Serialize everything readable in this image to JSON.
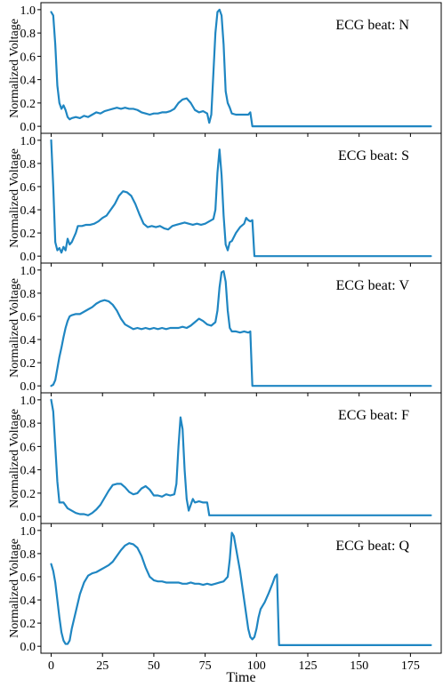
{
  "chart_data": {
    "type": "line",
    "xlabel": "Time",
    "ylabel": "Normalized Voltage",
    "xlim": [
      -5,
      190
    ],
    "ylim": [
      -0.06,
      1.06
    ],
    "x_ticks": [
      0,
      25,
      50,
      75,
      100,
      125,
      150,
      175
    ],
    "y_ticks": [
      0.0,
      0.2,
      0.4,
      0.6,
      0.8,
      1.0
    ],
    "line_color": "#1f86c2",
    "panels": [
      {
        "label": "ECG beat: N",
        "points": [
          [
            0,
            0.98
          ],
          [
            1,
            0.95
          ],
          [
            2,
            0.7
          ],
          [
            3,
            0.35
          ],
          [
            4,
            0.2
          ],
          [
            5,
            0.15
          ],
          [
            6,
            0.18
          ],
          [
            7,
            0.14
          ],
          [
            8,
            0.08
          ],
          [
            9,
            0.06
          ],
          [
            10,
            0.07
          ],
          [
            12,
            0.08
          ],
          [
            14,
            0.07
          ],
          [
            16,
            0.09
          ],
          [
            18,
            0.08
          ],
          [
            20,
            0.1
          ],
          [
            22,
            0.12
          ],
          [
            24,
            0.11
          ],
          [
            26,
            0.13
          ],
          [
            28,
            0.14
          ],
          [
            30,
            0.15
          ],
          [
            32,
            0.16
          ],
          [
            34,
            0.15
          ],
          [
            36,
            0.16
          ],
          [
            38,
            0.15
          ],
          [
            40,
            0.15
          ],
          [
            42,
            0.14
          ],
          [
            44,
            0.12
          ],
          [
            46,
            0.11
          ],
          [
            48,
            0.1
          ],
          [
            50,
            0.11
          ],
          [
            52,
            0.11
          ],
          [
            54,
            0.12
          ],
          [
            56,
            0.12
          ],
          [
            58,
            0.13
          ],
          [
            60,
            0.15
          ],
          [
            62,
            0.2
          ],
          [
            64,
            0.23
          ],
          [
            66,
            0.24
          ],
          [
            68,
            0.2
          ],
          [
            70,
            0.14
          ],
          [
            72,
            0.12
          ],
          [
            74,
            0.13
          ],
          [
            76,
            0.11
          ],
          [
            77,
            0.03
          ],
          [
            78,
            0.1
          ],
          [
            79,
            0.45
          ],
          [
            80,
            0.8
          ],
          [
            81,
            0.98
          ],
          [
            82,
            1.0
          ],
          [
            83,
            0.95
          ],
          [
            84,
            0.7
          ],
          [
            85,
            0.3
          ],
          [
            86,
            0.2
          ],
          [
            87,
            0.16
          ],
          [
            88,
            0.11
          ],
          [
            90,
            0.1
          ],
          [
            92,
            0.1
          ],
          [
            94,
            0.1
          ],
          [
            96,
            0.1
          ],
          [
            97,
            0.12
          ],
          [
            98,
            0.0
          ],
          [
            120,
            0.0
          ],
          [
            140,
            0.0
          ],
          [
            160,
            0.0
          ],
          [
            185,
            0.0
          ]
        ]
      },
      {
        "label": "ECG beat: S",
        "points": [
          [
            0,
            1.0
          ],
          [
            1,
            0.6
          ],
          [
            2,
            0.12
          ],
          [
            3,
            0.05
          ],
          [
            4,
            0.07
          ],
          [
            5,
            0.03
          ],
          [
            6,
            0.08
          ],
          [
            7,
            0.05
          ],
          [
            8,
            0.15
          ],
          [
            9,
            0.1
          ],
          [
            10,
            0.12
          ],
          [
            12,
            0.2
          ],
          [
            13,
            0.26
          ],
          [
            15,
            0.26
          ],
          [
            17,
            0.27
          ],
          [
            19,
            0.27
          ],
          [
            21,
            0.28
          ],
          [
            23,
            0.3
          ],
          [
            25,
            0.33
          ],
          [
            27,
            0.35
          ],
          [
            29,
            0.4
          ],
          [
            31,
            0.45
          ],
          [
            33,
            0.52
          ],
          [
            35,
            0.56
          ],
          [
            37,
            0.55
          ],
          [
            39,
            0.52
          ],
          [
            41,
            0.45
          ],
          [
            43,
            0.36
          ],
          [
            45,
            0.28
          ],
          [
            47,
            0.25
          ],
          [
            49,
            0.26
          ],
          [
            51,
            0.25
          ],
          [
            53,
            0.26
          ],
          [
            55,
            0.24
          ],
          [
            57,
            0.23
          ],
          [
            59,
            0.26
          ],
          [
            61,
            0.27
          ],
          [
            63,
            0.28
          ],
          [
            65,
            0.29
          ],
          [
            67,
            0.28
          ],
          [
            69,
            0.27
          ],
          [
            71,
            0.28
          ],
          [
            73,
            0.27
          ],
          [
            75,
            0.28
          ],
          [
            77,
            0.3
          ],
          [
            79,
            0.32
          ],
          [
            80,
            0.4
          ],
          [
            81,
            0.72
          ],
          [
            82,
            0.92
          ],
          [
            83,
            0.7
          ],
          [
            84,
            0.35
          ],
          [
            85,
            0.1
          ],
          [
            86,
            0.05
          ],
          [
            87,
            0.12
          ],
          [
            88,
            0.13
          ],
          [
            90,
            0.2
          ],
          [
            92,
            0.25
          ],
          [
            94,
            0.28
          ],
          [
            95,
            0.33
          ],
          [
            96,
            0.31
          ],
          [
            97,
            0.3
          ],
          [
            98,
            0.31
          ],
          [
            99,
            0.0
          ],
          [
            120,
            0.0
          ],
          [
            150,
            0.0
          ],
          [
            185,
            0.0
          ]
        ]
      },
      {
        "label": "ECG beat: V",
        "points": [
          [
            0,
            0.0
          ],
          [
            1,
            0.01
          ],
          [
            2,
            0.05
          ],
          [
            3,
            0.15
          ],
          [
            4,
            0.25
          ],
          [
            5,
            0.33
          ],
          [
            6,
            0.42
          ],
          [
            7,
            0.5
          ],
          [
            8,
            0.56
          ],
          [
            9,
            0.6
          ],
          [
            10,
            0.61
          ],
          [
            12,
            0.62
          ],
          [
            14,
            0.62
          ],
          [
            16,
            0.64
          ],
          [
            18,
            0.66
          ],
          [
            20,
            0.68
          ],
          [
            22,
            0.71
          ],
          [
            24,
            0.73
          ],
          [
            26,
            0.74
          ],
          [
            28,
            0.73
          ],
          [
            30,
            0.7
          ],
          [
            32,
            0.65
          ],
          [
            34,
            0.58
          ],
          [
            36,
            0.53
          ],
          [
            38,
            0.51
          ],
          [
            40,
            0.49
          ],
          [
            42,
            0.5
          ],
          [
            44,
            0.49
          ],
          [
            46,
            0.5
          ],
          [
            48,
            0.49
          ],
          [
            50,
            0.5
          ],
          [
            52,
            0.49
          ],
          [
            54,
            0.5
          ],
          [
            56,
            0.49
          ],
          [
            58,
            0.5
          ],
          [
            60,
            0.5
          ],
          [
            62,
            0.5
          ],
          [
            64,
            0.51
          ],
          [
            66,
            0.5
          ],
          [
            68,
            0.52
          ],
          [
            70,
            0.55
          ],
          [
            72,
            0.58
          ],
          [
            74,
            0.56
          ],
          [
            76,
            0.53
          ],
          [
            78,
            0.52
          ],
          [
            80,
            0.55
          ],
          [
            81,
            0.65
          ],
          [
            82,
            0.85
          ],
          [
            83,
            0.98
          ],
          [
            84,
            0.99
          ],
          [
            85,
            0.9
          ],
          [
            86,
            0.65
          ],
          [
            87,
            0.5
          ],
          [
            88,
            0.47
          ],
          [
            90,
            0.47
          ],
          [
            92,
            0.46
          ],
          [
            94,
            0.47
          ],
          [
            96,
            0.46
          ],
          [
            97,
            0.47
          ],
          [
            98,
            0.0
          ],
          [
            120,
            0.0
          ],
          [
            150,
            0.0
          ],
          [
            185,
            0.0
          ]
        ]
      },
      {
        "label": "ECG beat: F",
        "points": [
          [
            0,
            1.0
          ],
          [
            1,
            0.9
          ],
          [
            2,
            0.6
          ],
          [
            3,
            0.3
          ],
          [
            4,
            0.12
          ],
          [
            6,
            0.12
          ],
          [
            8,
            0.07
          ],
          [
            10,
            0.05
          ],
          [
            12,
            0.03
          ],
          [
            14,
            0.02
          ],
          [
            16,
            0.02
          ],
          [
            18,
            0.01
          ],
          [
            20,
            0.03
          ],
          [
            22,
            0.06
          ],
          [
            24,
            0.1
          ],
          [
            26,
            0.16
          ],
          [
            28,
            0.22
          ],
          [
            30,
            0.27
          ],
          [
            32,
            0.28
          ],
          [
            34,
            0.28
          ],
          [
            36,
            0.25
          ],
          [
            38,
            0.21
          ],
          [
            40,
            0.19
          ],
          [
            42,
            0.2
          ],
          [
            44,
            0.24
          ],
          [
            46,
            0.26
          ],
          [
            48,
            0.23
          ],
          [
            50,
            0.18
          ],
          [
            52,
            0.18
          ],
          [
            54,
            0.17
          ],
          [
            56,
            0.19
          ],
          [
            58,
            0.18
          ],
          [
            60,
            0.19
          ],
          [
            61,
            0.28
          ],
          [
            62,
            0.6
          ],
          [
            63,
            0.85
          ],
          [
            64,
            0.75
          ],
          [
            65,
            0.4
          ],
          [
            66,
            0.15
          ],
          [
            67,
            0.05
          ],
          [
            68,
            0.1
          ],
          [
            69,
            0.15
          ],
          [
            70,
            0.12
          ],
          [
            72,
            0.13
          ],
          [
            74,
            0.12
          ],
          [
            76,
            0.12
          ],
          [
            77,
            0.01
          ],
          [
            100,
            0.01
          ],
          [
            130,
            0.01
          ],
          [
            160,
            0.01
          ],
          [
            185,
            0.01
          ]
        ]
      },
      {
        "label": "ECG beat: Q",
        "points": [
          [
            0,
            0.71
          ],
          [
            1,
            0.65
          ],
          [
            2,
            0.55
          ],
          [
            3,
            0.4
          ],
          [
            4,
            0.25
          ],
          [
            5,
            0.12
          ],
          [
            6,
            0.05
          ],
          [
            7,
            0.02
          ],
          [
            8,
            0.02
          ],
          [
            9,
            0.05
          ],
          [
            10,
            0.15
          ],
          [
            12,
            0.3
          ],
          [
            14,
            0.45
          ],
          [
            16,
            0.55
          ],
          [
            18,
            0.61
          ],
          [
            20,
            0.63
          ],
          [
            22,
            0.64
          ],
          [
            24,
            0.66
          ],
          [
            26,
            0.68
          ],
          [
            28,
            0.7
          ],
          [
            30,
            0.73
          ],
          [
            32,
            0.78
          ],
          [
            34,
            0.83
          ],
          [
            36,
            0.87
          ],
          [
            38,
            0.89
          ],
          [
            40,
            0.88
          ],
          [
            42,
            0.85
          ],
          [
            44,
            0.78
          ],
          [
            46,
            0.68
          ],
          [
            48,
            0.6
          ],
          [
            50,
            0.57
          ],
          [
            52,
            0.56
          ],
          [
            54,
            0.56
          ],
          [
            56,
            0.55
          ],
          [
            58,
            0.55
          ],
          [
            60,
            0.55
          ],
          [
            62,
            0.55
          ],
          [
            64,
            0.54
          ],
          [
            66,
            0.54
          ],
          [
            68,
            0.55
          ],
          [
            70,
            0.54
          ],
          [
            72,
            0.54
          ],
          [
            74,
            0.53
          ],
          [
            76,
            0.54
          ],
          [
            78,
            0.53
          ],
          [
            80,
            0.54
          ],
          [
            82,
            0.55
          ],
          [
            84,
            0.56
          ],
          [
            86,
            0.6
          ],
          [
            87,
            0.75
          ],
          [
            88,
            0.98
          ],
          [
            89,
            0.95
          ],
          [
            90,
            0.85
          ],
          [
            91,
            0.75
          ],
          [
            92,
            0.65
          ],
          [
            94,
            0.4
          ],
          [
            96,
            0.15
          ],
          [
            97,
            0.08
          ],
          [
            98,
            0.06
          ],
          [
            99,
            0.08
          ],
          [
            100,
            0.15
          ],
          [
            101,
            0.25
          ],
          [
            102,
            0.32
          ],
          [
            104,
            0.38
          ],
          [
            106,
            0.46
          ],
          [
            108,
            0.55
          ],
          [
            109,
            0.6
          ],
          [
            110,
            0.62
          ],
          [
            111,
            0.01
          ],
          [
            130,
            0.01
          ],
          [
            160,
            0.01
          ],
          [
            185,
            0.01
          ]
        ]
      }
    ]
  }
}
